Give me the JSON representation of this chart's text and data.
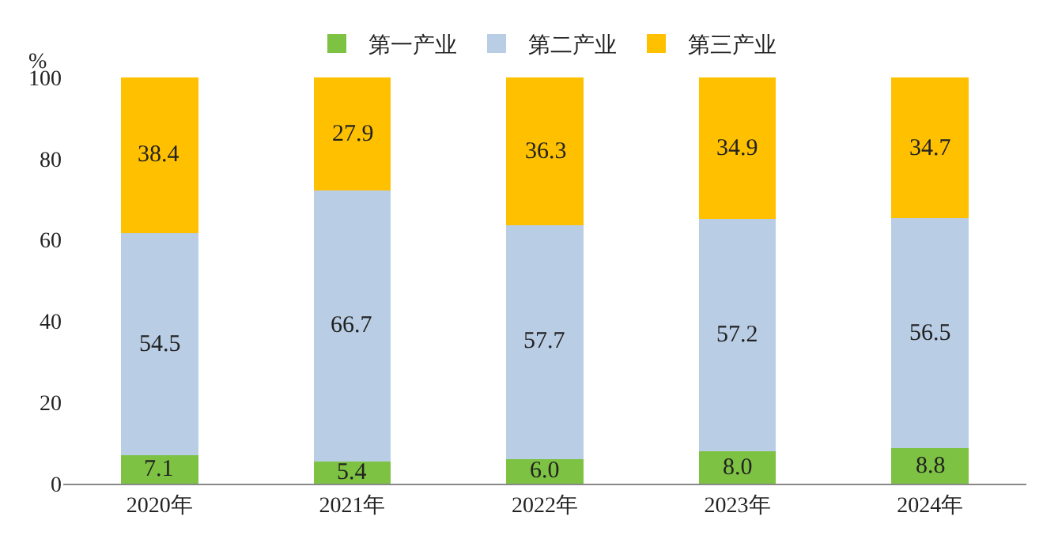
{
  "chart_data": {
    "type": "bar",
    "stacked": true,
    "ylabel": "%",
    "categories": [
      "2020年",
      "2021年",
      "2022年",
      "2023年",
      "2024年"
    ],
    "series": [
      {
        "name": "第一产业",
        "color": "#7dc242",
        "values": [
          7.1,
          5.4,
          6.0,
          8.0,
          8.8
        ],
        "value_labels": [
          "7.1",
          "5.4",
          "6.0",
          "8.0",
          "8.8"
        ]
      },
      {
        "name": "第二产业",
        "color": "#b9cde5",
        "values": [
          54.5,
          66.7,
          57.7,
          57.2,
          56.5
        ],
        "value_labels": [
          "54.5",
          "66.7",
          "57.7",
          "57.2",
          "56.5"
        ]
      },
      {
        "name": "第三产业",
        "color": "#ffc000",
        "values": [
          38.4,
          27.9,
          36.3,
          34.9,
          34.7
        ],
        "value_labels": [
          "38.4",
          "27.9",
          "36.3",
          "34.9",
          "34.7"
        ]
      }
    ],
    "ylim": [
      0,
      100
    ],
    "yticks": [
      0,
      20,
      40,
      60,
      80,
      100
    ],
    "legend": "top"
  }
}
